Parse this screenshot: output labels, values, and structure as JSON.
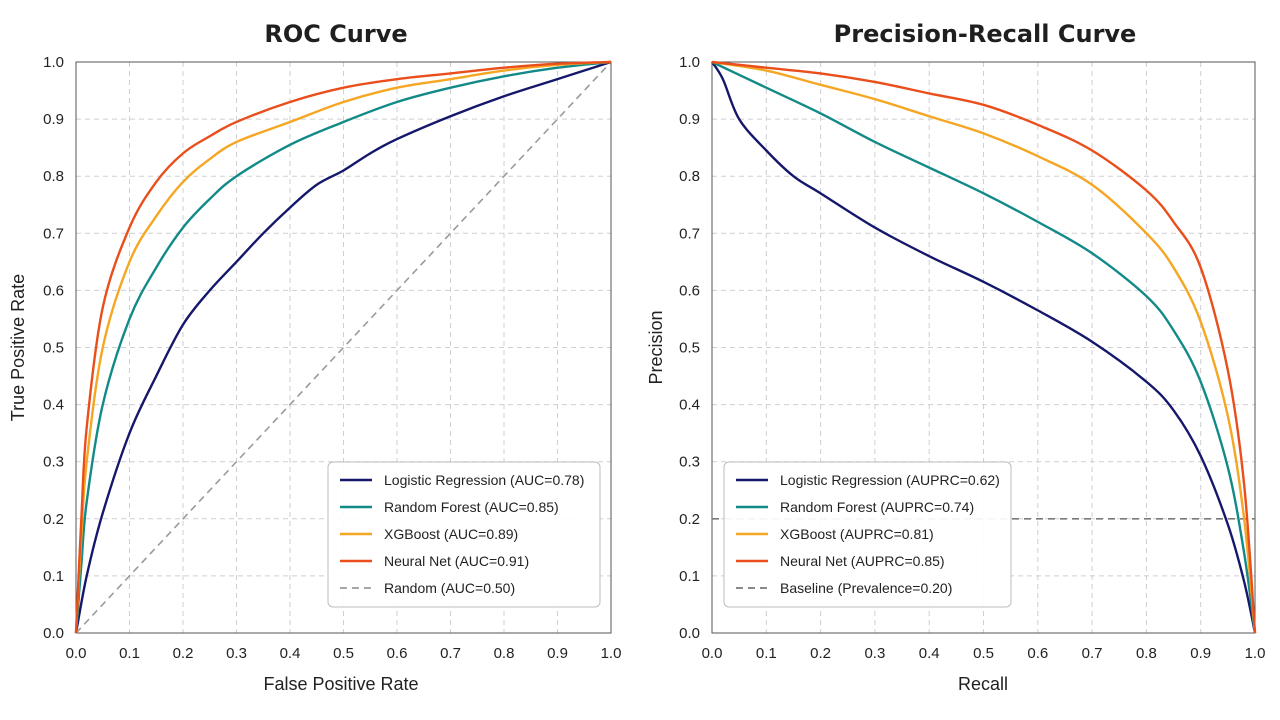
{
  "chart_data": [
    {
      "type": "line",
      "title": "ROC Curve",
      "xlabel": "False Positive Rate",
      "ylabel": "True Positive Rate",
      "xlim": [
        0,
        1
      ],
      "ylim": [
        0,
        1
      ],
      "xticks": [
        "0.0",
        "0.1",
        "0.2",
        "0.3",
        "0.4",
        "0.5",
        "0.6",
        "0.7",
        "0.8",
        "0.9",
        "1.0"
      ],
      "yticks": [
        "0.0",
        "0.1",
        "0.2",
        "0.3",
        "0.4",
        "0.5",
        "0.6",
        "0.7",
        "0.8",
        "0.9",
        "1.0"
      ],
      "grid": true,
      "legend_position": "bottom-right",
      "series": [
        {
          "name": "Logistic Regression (AUC=0.78)",
          "color": "#15186a",
          "dash": false,
          "points": [
            [
              0,
              0
            ],
            [
              0.02,
              0.1
            ],
            [
              0.05,
              0.21
            ],
            [
              0.1,
              0.35
            ],
            [
              0.15,
              0.45
            ],
            [
              0.2,
              0.54
            ],
            [
              0.25,
              0.6
            ],
            [
              0.3,
              0.65
            ],
            [
              0.35,
              0.7
            ],
            [
              0.4,
              0.745
            ],
            [
              0.45,
              0.785
            ],
            [
              0.5,
              0.81
            ],
            [
              0.55,
              0.84
            ],
            [
              0.6,
              0.865
            ],
            [
              0.7,
              0.905
            ],
            [
              0.8,
              0.94
            ],
            [
              0.9,
              0.97
            ],
            [
              1,
              1
            ]
          ]
        },
        {
          "name": "Random Forest (AUC=0.85)",
          "color": "#128a87",
          "dash": false,
          "points": [
            [
              0,
              0
            ],
            [
              0.01,
              0.12
            ],
            [
              0.02,
              0.23
            ],
            [
              0.05,
              0.4
            ],
            [
              0.1,
              0.55
            ],
            [
              0.15,
              0.64
            ],
            [
              0.2,
              0.71
            ],
            [
              0.25,
              0.76
            ],
            [
              0.3,
              0.8
            ],
            [
              0.4,
              0.855
            ],
            [
              0.5,
              0.895
            ],
            [
              0.6,
              0.93
            ],
            [
              0.7,
              0.955
            ],
            [
              0.8,
              0.975
            ],
            [
              0.9,
              0.99
            ],
            [
              1,
              1
            ]
          ]
        },
        {
          "name": "XGBoost (AUC=0.89)",
          "color": "#f5a623",
          "dash": false,
          "points": [
            [
              0,
              0
            ],
            [
              0.01,
              0.17
            ],
            [
              0.02,
              0.3
            ],
            [
              0.05,
              0.5
            ],
            [
              0.1,
              0.65
            ],
            [
              0.15,
              0.73
            ],
            [
              0.2,
              0.79
            ],
            [
              0.25,
              0.83
            ],
            [
              0.3,
              0.86
            ],
            [
              0.4,
              0.895
            ],
            [
              0.5,
              0.93
            ],
            [
              0.6,
              0.955
            ],
            [
              0.7,
              0.97
            ],
            [
              0.8,
              0.985
            ],
            [
              0.9,
              0.995
            ],
            [
              1,
              1
            ]
          ]
        },
        {
          "name": "Neural Net (AUC=0.91)",
          "color": "#e94e1b",
          "dash": false,
          "points": [
            [
              0,
              0
            ],
            [
              0.01,
              0.2
            ],
            [
              0.02,
              0.36
            ],
            [
              0.05,
              0.57
            ],
            [
              0.1,
              0.71
            ],
            [
              0.15,
              0.79
            ],
            [
              0.2,
              0.84
            ],
            [
              0.25,
              0.87
            ],
            [
              0.3,
              0.895
            ],
            [
              0.4,
              0.93
            ],
            [
              0.5,
              0.955
            ],
            [
              0.6,
              0.97
            ],
            [
              0.7,
              0.98
            ],
            [
              0.8,
              0.99
            ],
            [
              0.9,
              0.997
            ],
            [
              1,
              1
            ]
          ]
        },
        {
          "name": "Random (AUC=0.50)",
          "color": "#9a9a9a",
          "dash": true,
          "points": [
            [
              0,
              0
            ],
            [
              1,
              1
            ]
          ]
        }
      ]
    },
    {
      "type": "line",
      "title": "Precision-Recall Curve",
      "xlabel": "Recall",
      "ylabel": "Precision",
      "xlim": [
        0,
        1
      ],
      "ylim": [
        0,
        1
      ],
      "xticks": [
        "0.0",
        "0.1",
        "0.2",
        "0.3",
        "0.4",
        "0.5",
        "0.6",
        "0.7",
        "0.8",
        "0.9",
        "1.0"
      ],
      "yticks": [
        "0.0",
        "0.1",
        "0.2",
        "0.3",
        "0.4",
        "0.5",
        "0.6",
        "0.7",
        "0.8",
        "0.9",
        "1.0"
      ],
      "grid": true,
      "legend_position": "bottom-left",
      "series": [
        {
          "name": "Logistic Regression (AUPRC=0.62)",
          "color": "#15186a",
          "dash": false,
          "points": [
            [
              0,
              1
            ],
            [
              0.02,
              0.97
            ],
            [
              0.05,
              0.9
            ],
            [
              0.1,
              0.845
            ],
            [
              0.15,
              0.8
            ],
            [
              0.2,
              0.77
            ],
            [
              0.3,
              0.71
            ],
            [
              0.4,
              0.66
            ],
            [
              0.5,
              0.615
            ],
            [
              0.6,
              0.565
            ],
            [
              0.7,
              0.51
            ],
            [
              0.8,
              0.44
            ],
            [
              0.85,
              0.39
            ],
            [
              0.9,
              0.31
            ],
            [
              0.95,
              0.19
            ],
            [
              0.98,
              0.09
            ],
            [
              1,
              0
            ]
          ]
        },
        {
          "name": "Random Forest (AUPRC=0.74)",
          "color": "#128a87",
          "dash": false,
          "points": [
            [
              0,
              1
            ],
            [
              0.1,
              0.955
            ],
            [
              0.2,
              0.91
            ],
            [
              0.3,
              0.86
            ],
            [
              0.4,
              0.815
            ],
            [
              0.5,
              0.77
            ],
            [
              0.6,
              0.72
            ],
            [
              0.7,
              0.665
            ],
            [
              0.8,
              0.59
            ],
            [
              0.85,
              0.53
            ],
            [
              0.9,
              0.44
            ],
            [
              0.95,
              0.29
            ],
            [
              0.98,
              0.14
            ],
            [
              1,
              0
            ]
          ]
        },
        {
          "name": "XGBoost (AUPRC=0.81)",
          "color": "#f5a623",
          "dash": false,
          "points": [
            [
              0,
              1
            ],
            [
              0.1,
              0.985
            ],
            [
              0.2,
              0.96
            ],
            [
              0.3,
              0.935
            ],
            [
              0.4,
              0.905
            ],
            [
              0.5,
              0.875
            ],
            [
              0.6,
              0.835
            ],
            [
              0.7,
              0.785
            ],
            [
              0.8,
              0.7
            ],
            [
              0.85,
              0.64
            ],
            [
              0.9,
              0.545
            ],
            [
              0.95,
              0.38
            ],
            [
              0.98,
              0.2
            ],
            [
              1,
              0
            ]
          ]
        },
        {
          "name": "Neural Net (AUPRC=0.85)",
          "color": "#e94e1b",
          "dash": false,
          "points": [
            [
              0,
              1
            ],
            [
              0.1,
              0.99
            ],
            [
              0.2,
              0.98
            ],
            [
              0.3,
              0.965
            ],
            [
              0.4,
              0.945
            ],
            [
              0.5,
              0.925
            ],
            [
              0.6,
              0.89
            ],
            [
              0.7,
              0.845
            ],
            [
              0.8,
              0.775
            ],
            [
              0.85,
              0.72
            ],
            [
              0.9,
              0.64
            ],
            [
              0.95,
              0.46
            ],
            [
              0.98,
              0.26
            ],
            [
              1,
              0
            ]
          ]
        },
        {
          "name": "Baseline (Prevalence=0.20)",
          "color": "#7a7a7a",
          "dash": true,
          "points": [
            [
              0,
              0.2
            ],
            [
              1,
              0.2
            ]
          ]
        }
      ]
    }
  ]
}
